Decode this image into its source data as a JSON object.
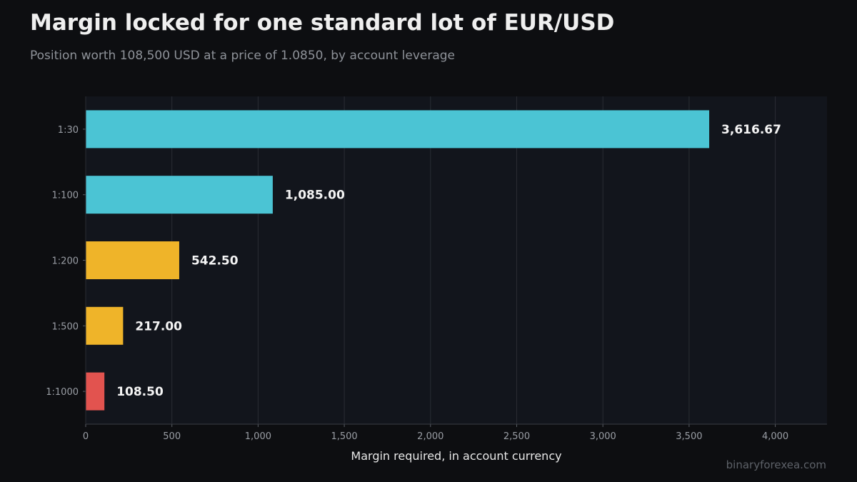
{
  "header": {
    "title": "Margin locked for one standard lot of EUR/USD",
    "subtitle": "Position worth 108,500 USD at a price of 1.0850, by account leverage"
  },
  "footer": {
    "watermark": "binaryforexea.com"
  },
  "colors": {
    "page_background": "#0d0e11",
    "plot_background": "#12151c",
    "grid": "#2a2d34",
    "cyan": "#4bc4d4",
    "amber": "#efb429",
    "red": "#e2534f"
  },
  "chart_data": {
    "type": "bar",
    "orientation": "horizontal",
    "categories": [
      "1:30",
      "1:100",
      "1:200",
      "1:500",
      "1:1000"
    ],
    "values": [
      3616.67,
      1085.0,
      542.5,
      217.0,
      108.5
    ],
    "value_labels": [
      "3,616.67",
      "1,085.00",
      "542.50",
      "217.00",
      "108.50"
    ],
    "bar_colors": [
      "#4bc4d4",
      "#4bc4d4",
      "#efb429",
      "#efb429",
      "#e2534f"
    ],
    "xlabel": "Margin required, in account currency",
    "ylabel": "",
    "xlim": [
      0,
      4300
    ],
    "xticks": [
      0,
      500,
      1000,
      1500,
      2000,
      2500,
      3000,
      3500,
      4000
    ],
    "xtick_labels": [
      "0",
      "500",
      "1,000",
      "1,500",
      "2,000",
      "2,500",
      "3,000",
      "3,500",
      "4,000"
    ],
    "grid": "vertical",
    "legend": "none"
  }
}
